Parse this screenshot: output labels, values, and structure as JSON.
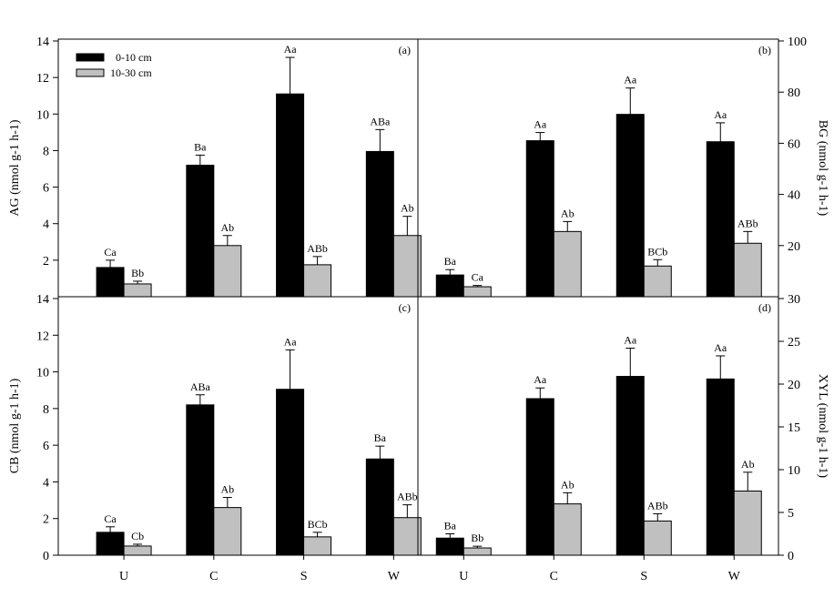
{
  "chart_data": {
    "type": "bar",
    "categories": [
      "U",
      "C",
      "S",
      "W"
    ],
    "legend": [
      "0-10 cm",
      "10-30 cm"
    ],
    "legend_placement": "top-left of panel (a)",
    "colors": {
      "0-10 cm": "#000000",
      "10-30 cm": "#c0c0c0"
    },
    "panels": [
      {
        "id": "a",
        "label": "(a)",
        "ylabel": "AG (nmol g-1 h-1)",
        "axis_side": "left",
        "ylim": [
          0,
          14
        ],
        "ticks": [
          2,
          4,
          6,
          8,
          10,
          12,
          14
        ],
        "series": [
          {
            "name": "0-10 cm",
            "values": [
              1.6,
              7.2,
              11.1,
              7.95
            ],
            "errors": [
              0.4,
              0.55,
              2.0,
              1.2
            ],
            "letters": [
              "Ca",
              "Ba",
              "Aa",
              "ABa"
            ]
          },
          {
            "name": "10-30 cm",
            "values": [
              0.7,
              2.8,
              1.75,
              3.35
            ],
            "errors": [
              0.15,
              0.55,
              0.45,
              1.05
            ],
            "letters": [
              "Bb",
              "Ab",
              "ABb",
              "Ab"
            ]
          }
        ]
      },
      {
        "id": "b",
        "label": "(b)",
        "ylabel": "BG (nmol g-1 h-1)",
        "axis_side": "right",
        "ylim": [
          0,
          100
        ],
        "ticks": [
          20,
          40,
          60,
          80,
          100
        ],
        "series": [
          {
            "name": "0-10 cm",
            "values": [
              8.5,
              61,
              71.3,
              60.6
            ],
            "errors": [
              2.1,
              3.2,
              10.3,
              7.4
            ],
            "letters": [
              "Ba",
              "Aa",
              "Aa",
              "Aa"
            ]
          },
          {
            "name": "10-30 cm",
            "values": [
              3.9,
              25.5,
              12,
              20.9
            ],
            "errors": [
              0.5,
              3.9,
              2.5,
              4.6
            ],
            "letters": [
              "Ca",
              "Ab",
              "BCb",
              "ABb"
            ]
          }
        ]
      },
      {
        "id": "c",
        "label": "(c)",
        "ylabel": "CB (nmol g-1 h-1)",
        "axis_side": "left",
        "ylim": [
          0,
          14
        ],
        "ticks": [
          0,
          2,
          4,
          6,
          8,
          10,
          12,
          14
        ],
        "series": [
          {
            "name": "0-10 cm",
            "values": [
              1.25,
              8.2,
              9.05,
              5.25
            ],
            "errors": [
              0.3,
              0.55,
              2.15,
              0.7
            ],
            "letters": [
              "Ca",
              "ABa",
              "Aa",
              "Ba"
            ]
          },
          {
            "name": "10-30 cm",
            "values": [
              0.5,
              2.6,
              1.0,
              2.05
            ],
            "errors": [
              0.1,
              0.55,
              0.25,
              0.7
            ],
            "letters": [
              "Cb",
              "Ab",
              "BCb",
              "ABb"
            ]
          }
        ]
      },
      {
        "id": "d",
        "label": "(d)",
        "ylabel": "XYL (nmol g-1 h-1)",
        "axis_side": "right",
        "ylim": [
          0,
          30
        ],
        "ticks": [
          0,
          5,
          10,
          15,
          20,
          25,
          30
        ],
        "series": [
          {
            "name": "0-10 cm",
            "values": [
              2.0,
              18.3,
              20.9,
              20.6
            ],
            "errors": [
              0.5,
              1.25,
              3.3,
              2.7
            ],
            "letters": [
              "Ba",
              "Aa",
              "Aa",
              "Aa"
            ]
          },
          {
            "name": "10-30 cm",
            "values": [
              0.85,
              6.0,
              4.0,
              7.5
            ],
            "errors": [
              0.2,
              1.3,
              0.85,
              2.2
            ],
            "letters": [
              "Bb",
              "Ab",
              "ABb",
              "Ab"
            ]
          }
        ]
      }
    ]
  }
}
